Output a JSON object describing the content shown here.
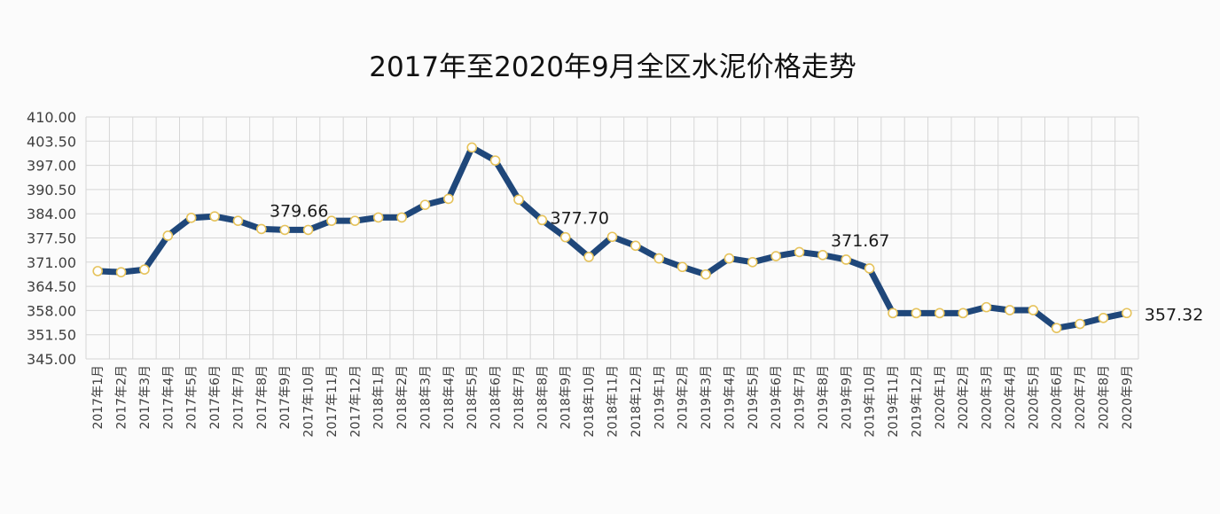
{
  "chart_data": {
    "type": "line",
    "title": "2017年至2020年9月全区水泥价格走势",
    "categories": [
      "2017年1月",
      "2017年2月",
      "2017年3月",
      "2017年4月",
      "2017年5月",
      "2017年6月",
      "2017年7月",
      "2017年8月",
      "2017年9月",
      "2017年10月",
      "2017年11月",
      "2017年12月",
      "2018年1月",
      "2018年2月",
      "2018年3月",
      "2018年4月",
      "2018年5月",
      "2018年6月",
      "2018年7月",
      "2018年8月",
      "2018年9月",
      "2018年10月",
      "2018年11月",
      "2018年12月",
      "2019年1月",
      "2019年2月",
      "2019年3月",
      "2019年4月",
      "2019年5月",
      "2019年6月",
      "2019年7月",
      "2019年8月",
      "2019年9月",
      "2019年10月",
      "2019年11月",
      "2019年12月",
      "2020年1月",
      "2020年2月",
      "2020年3月",
      "2020年4月",
      "2020年5月",
      "2020年6月",
      "2020年7月",
      "2020年8月",
      "2020年9月"
    ],
    "series": [
      {
        "values": [
          368.6,
          368.3,
          369.0,
          378.1,
          382.9,
          383.3,
          382.1,
          379.9,
          379.66,
          379.66,
          382.1,
          382.1,
          383.0,
          383.0,
          386.4,
          388.0,
          401.8,
          398.3,
          387.8,
          382.3,
          377.7,
          372.4,
          377.8,
          375.4,
          372.0,
          369.7,
          367.7,
          372.0,
          371.0,
          372.6,
          373.7,
          372.9,
          371.67,
          369.3,
          357.3,
          357.3,
          357.3,
          357.3,
          358.9,
          358.1,
          358.1,
          353.3,
          354.4,
          356.0,
          357.32
        ]
      }
    ],
    "ylim": [
      345,
      410
    ],
    "yticks": [
      "410.00",
      "403.50",
      "397.00",
      "390.50",
      "384.00",
      "377.50",
      "371.00",
      "364.50",
      "358.00",
      "351.50",
      "345.00"
    ],
    "data_labels": [
      {
        "index": 8,
        "text": "379.66"
      },
      {
        "index": 20,
        "text": "377.70"
      },
      {
        "index": 32,
        "text": "371.67"
      },
      {
        "index": 44,
        "text": "357.32"
      }
    ],
    "grid": true,
    "colors": {
      "line": "#1f477a",
      "marker_fill": "#ffffff",
      "marker_stroke": "#e6c35c",
      "grid": "#d6d6d6",
      "text": "#1a1a1a",
      "axis_text": "#404040"
    }
  }
}
